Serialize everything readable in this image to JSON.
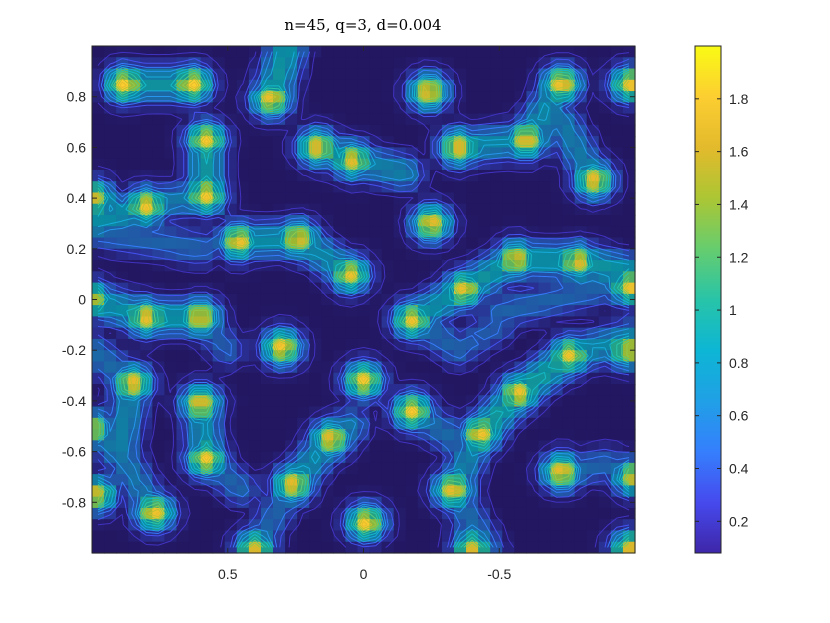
{
  "chart_data": {
    "type": "heatmap",
    "title": "n=45, q=3, d=0.004",
    "xlabel": "",
    "ylabel": "",
    "xlim": [
      1,
      -1
    ],
    "ylim": [
      -1,
      1
    ],
    "x_reversed": true,
    "xticks": [
      0.5,
      0,
      -0.5
    ],
    "xtick_labels": [
      "0.5",
      "0",
      "-0.5"
    ],
    "yticks": [
      0.8,
      0.6,
      0.4,
      0.2,
      0,
      -0.2,
      -0.4,
      -0.6,
      -0.8
    ],
    "ytick_labels": [
      "0.8",
      "0.6",
      "0.4",
      "0.2",
      "0",
      "-0.2",
      "-0.4",
      "-0.6",
      "-0.8"
    ],
    "colorbar": {
      "limits": [
        0.08,
        2.0
      ],
      "ticks": [
        1.8,
        1.6,
        1.4,
        1.2,
        1,
        0.8,
        0.6,
        0.4,
        0.2
      ],
      "tick_labels": [
        "1.8",
        "1.6",
        "1.4",
        "1.2",
        "1",
        "0.8",
        "0.6",
        "0.4",
        "0.2"
      ],
      "colormap": "parula"
    },
    "overlay": "contour",
    "grid": false,
    "peaks": [
      {
        "x": 0.88,
        "y": 0.85,
        "z": 1.85
      },
      {
        "x": 0.63,
        "y": 0.85,
        "z": 1.85
      },
      {
        "x": 0.34,
        "y": 0.79,
        "z": 1.8
      },
      {
        "x": 0.58,
        "y": 0.63,
        "z": 1.8
      },
      {
        "x": 0.17,
        "y": 0.6,
        "z": 1.8
      },
      {
        "x": 0.04,
        "y": 0.55,
        "z": 1.75
      },
      {
        "x": -0.24,
        "y": 0.82,
        "z": 1.85
      },
      {
        "x": -0.35,
        "y": 0.6,
        "z": 1.8
      },
      {
        "x": -0.6,
        "y": 0.63,
        "z": 1.8
      },
      {
        "x": -0.73,
        "y": 0.85,
        "z": 1.85
      },
      {
        "x": -0.98,
        "y": 0.85,
        "z": 1.7
      },
      {
        "x": -0.85,
        "y": 0.47,
        "z": 1.8
      },
      {
        "x": 0.8,
        "y": 0.37,
        "z": 1.8
      },
      {
        "x": 0.58,
        "y": 0.41,
        "z": 1.8
      },
      {
        "x": 0.46,
        "y": 0.23,
        "z": 1.8
      },
      {
        "x": 0.24,
        "y": 0.24,
        "z": 1.8
      },
      {
        "x": 0.05,
        "y": 0.1,
        "z": 1.75
      },
      {
        "x": -0.25,
        "y": 0.3,
        "z": 1.8
      },
      {
        "x": -0.37,
        "y": 0.04,
        "z": 1.75
      },
      {
        "x": -0.56,
        "y": 0.16,
        "z": 1.75
      },
      {
        "x": -0.79,
        "y": 0.15,
        "z": 1.75
      },
      {
        "x": -0.18,
        "y": -0.08,
        "z": 1.75
      },
      {
        "x": -0.98,
        "y": 0.05,
        "z": 1.7
      },
      {
        "x": 0.99,
        "y": 0.4,
        "z": 1.6
      },
      {
        "x": 0.8,
        "y": -0.07,
        "z": 1.8
      },
      {
        "x": 0.6,
        "y": -0.07,
        "z": 1.8
      },
      {
        "x": 1.0,
        "y": 0.0,
        "z": 1.6
      },
      {
        "x": 0.3,
        "y": -0.19,
        "z": 1.85
      },
      {
        "x": 0.85,
        "y": -0.33,
        "z": 1.8
      },
      {
        "x": 1.0,
        "y": -0.51,
        "z": 1.6
      },
      {
        "x": 0.6,
        "y": -0.41,
        "z": 1.8
      },
      {
        "x": 0.0,
        "y": -0.32,
        "z": 1.8
      },
      {
        "x": -0.18,
        "y": -0.44,
        "z": 1.8
      },
      {
        "x": 0.58,
        "y": -0.63,
        "z": 1.8
      },
      {
        "x": 0.98,
        "y": -0.77,
        "z": 1.6
      },
      {
        "x": 0.77,
        "y": -0.84,
        "z": 1.8
      },
      {
        "x": 0.26,
        "y": -0.73,
        "z": 1.8
      },
      {
        "x": 0.12,
        "y": -0.55,
        "z": 1.8
      },
      {
        "x": -0.01,
        "y": -0.88,
        "z": 1.85
      },
      {
        "x": -0.33,
        "y": -0.75,
        "z": 1.8
      },
      {
        "x": -0.43,
        "y": -0.53,
        "z": 1.8
      },
      {
        "x": -0.57,
        "y": -0.37,
        "z": 1.8
      },
      {
        "x": -0.76,
        "y": -0.22,
        "z": 1.75
      },
      {
        "x": -0.97,
        "y": -0.2,
        "z": 1.6
      },
      {
        "x": -0.73,
        "y": -0.68,
        "z": 1.85
      },
      {
        "x": -0.99,
        "y": -0.7,
        "z": 1.6
      },
      {
        "x": 0.4,
        "y": -0.98,
        "z": 1.6
      },
      {
        "x": -0.4,
        "y": -0.98,
        "z": 1.6
      },
      {
        "x": -0.98,
        "y": -0.98,
        "z": 1.6
      }
    ],
    "ridges": [
      {
        "from": [
          0.88,
          0.85
        ],
        "to": [
          0.63,
          0.85
        ],
        "z": 0.9
      },
      {
        "from": [
          0.34,
          0.79
        ],
        "to": [
          0.28,
          1.0
        ],
        "z": 0.9
      },
      {
        "from": [
          0.17,
          0.6
        ],
        "to": [
          0.04,
          0.55
        ],
        "z": 0.85
      },
      {
        "from": [
          0.04,
          0.55
        ],
        "to": [
          -0.15,
          0.5
        ],
        "z": 0.75
      },
      {
        "from": [
          -0.35,
          0.6
        ],
        "to": [
          -0.6,
          0.63
        ],
        "z": 0.8
      },
      {
        "from": [
          -0.6,
          0.63
        ],
        "to": [
          -0.73,
          0.85
        ],
        "z": 0.8
      },
      {
        "from": [
          -0.73,
          0.7
        ],
        "to": [
          -0.85,
          0.47
        ],
        "z": 0.7
      },
      {
        "from": [
          0.58,
          0.63
        ],
        "to": [
          0.58,
          0.41
        ],
        "z": 0.9
      },
      {
        "from": [
          0.8,
          0.37
        ],
        "to": [
          1.0,
          0.3
        ],
        "z": 0.85
      },
      {
        "from": [
          0.8,
          0.37
        ],
        "to": [
          0.58,
          0.41
        ],
        "z": 0.7
      },
      {
        "from": [
          0.46,
          0.23
        ],
        "to": [
          0.24,
          0.24
        ],
        "z": 0.85
      },
      {
        "from": [
          0.24,
          0.24
        ],
        "to": [
          0.05,
          0.1
        ],
        "z": 0.8
      },
      {
        "from": [
          1.0,
          0.27
        ],
        "to": [
          0.6,
          0.2
        ],
        "z": 0.55
      },
      {
        "from": [
          -0.37,
          0.04
        ],
        "to": [
          -0.56,
          0.16
        ],
        "z": 0.9
      },
      {
        "from": [
          -0.56,
          0.16
        ],
        "to": [
          -0.79,
          0.15
        ],
        "z": 0.9
      },
      {
        "from": [
          -0.79,
          0.15
        ],
        "to": [
          -1.0,
          0.1
        ],
        "z": 0.9
      },
      {
        "from": [
          -0.18,
          -0.08
        ],
        "to": [
          -0.37,
          0.04
        ],
        "z": 0.85
      },
      {
        "from": [
          -0.18,
          -0.08
        ],
        "to": [
          -0.35,
          -0.2
        ],
        "z": 0.55
      },
      {
        "from": [
          -0.35,
          -0.2
        ],
        "to": [
          -0.5,
          -0.1
        ],
        "z": 0.5
      },
      {
        "from": [
          -0.5,
          -0.05
        ],
        "to": [
          -0.9,
          0.05
        ],
        "z": 0.55
      },
      {
        "from": [
          1.0,
          0.0
        ],
        "to": [
          0.8,
          -0.07
        ],
        "z": 0.85
      },
      {
        "from": [
          0.8,
          -0.07
        ],
        "to": [
          0.6,
          -0.07
        ],
        "z": 0.9
      },
      {
        "from": [
          0.6,
          -0.07
        ],
        "to": [
          0.5,
          -0.2
        ],
        "z": 0.5
      },
      {
        "from": [
          1.0,
          -0.2
        ],
        "to": [
          0.85,
          -0.33
        ],
        "z": 0.6
      },
      {
        "from": [
          0.85,
          -0.33
        ],
        "to": [
          0.9,
          -0.6
        ],
        "z": 0.75
      },
      {
        "from": [
          0.9,
          -0.6
        ],
        "to": [
          1.0,
          -0.51
        ],
        "z": 0.7
      },
      {
        "from": [
          0.9,
          -0.6
        ],
        "to": [
          0.77,
          -0.84
        ],
        "z": 0.65
      },
      {
        "from": [
          0.6,
          -0.41
        ],
        "to": [
          0.58,
          -0.63
        ],
        "z": 0.8
      },
      {
        "from": [
          0.58,
          -0.63
        ],
        "to": [
          0.45,
          -0.75
        ],
        "z": 0.55
      },
      {
        "from": [
          0.26,
          -0.73
        ],
        "to": [
          0.12,
          -0.55
        ],
        "z": 0.8
      },
      {
        "from": [
          0.12,
          -0.55
        ],
        "to": [
          0.05,
          -0.5
        ],
        "z": 0.7
      },
      {
        "from": [
          0.26,
          -0.73
        ],
        "to": [
          0.4,
          -0.98
        ],
        "z": 0.55
      },
      {
        "from": [
          -0.18,
          -0.44
        ],
        "to": [
          -0.33,
          -0.55
        ],
        "z": 0.6
      },
      {
        "from": [
          -0.33,
          -0.75
        ],
        "to": [
          -0.43,
          -0.53
        ],
        "z": 0.75
      },
      {
        "from": [
          -0.43,
          -0.53
        ],
        "to": [
          -0.57,
          -0.37
        ],
        "z": 0.95
      },
      {
        "from": [
          -0.57,
          -0.37
        ],
        "to": [
          -0.76,
          -0.22
        ],
        "z": 0.95
      },
      {
        "from": [
          -0.76,
          -0.22
        ],
        "to": [
          -1.0,
          -0.15
        ],
        "z": 0.8
      },
      {
        "from": [
          -0.33,
          -0.75
        ],
        "to": [
          -0.45,
          -0.98
        ],
        "z": 0.6
      },
      {
        "from": [
          -0.73,
          -0.68
        ],
        "to": [
          -0.9,
          -0.65
        ],
        "z": 0.55
      }
    ]
  }
}
